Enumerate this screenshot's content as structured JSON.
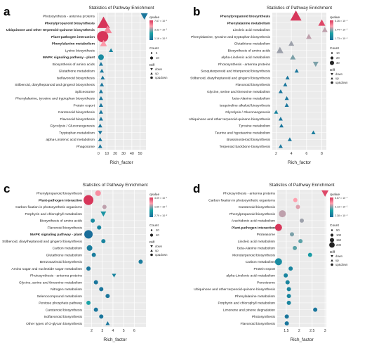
{
  "figure": {
    "legend_labels": {
      "qvalue": "qvalue",
      "count": "Count",
      "diff": "Diff"
    },
    "diff_labels": [
      "down",
      "up",
      "up&down"
    ],
    "colors": {
      "high": "#d7365a",
      "mid": "#ff9fae",
      "low": "#1aa3a6",
      "lowest": "#1a6e9a",
      "shape_mid": "#71c0ac"
    }
  },
  "chart_data": [
    {
      "panel_letter": "a",
      "type": "scatter",
      "title": "Statistics of Pathway Enrichment",
      "xlabel": "Rich_factor",
      "ylabel": "",
      "xlim": [
        -2,
        57
      ],
      "xticks": [
        0,
        10,
        20,
        30,
        40,
        50
      ],
      "legend": {
        "qvalue_ticks": [
          "7.67 × 10⁻¹",
          "3.33 × 10⁻¹",
          "1.16 × 10⁻¹"
        ],
        "count_sizes": [
          5,
          10
        ],
        "diff": [
          "down",
          "up",
          "up&down"
        ]
      },
      "categories": [
        "Photosynthesis - antenna proteins",
        "Phenylpropanoid biosynthesis",
        "Ubiquinone and other terpenoid-quinone biosynthesis",
        "Plant-pathogen interaction",
        "Phenylalanine metabolism",
        "Lysine biosynthesis",
        "MAPK signaling pathway - plant",
        "Biosynthesis of amino acids",
        "Glutathione metabolism",
        "Isoflavonoid biosynthesis",
        "Stilbenoid, diarylheptanoid and gingerol biosynthesis",
        "Spliceosome",
        "Phenylalanine, tyrosine and tryptophan biosynthesis",
        "Protein export",
        "Carotenoid biosynthesis",
        "Flavonoid biosynthesis",
        "Glycolysis / Gluconeogenesis",
        "Tryptophan metabolism",
        "alpha-Linolenic acid metabolism",
        "Phagosome"
      ],
      "bold": [
        "Phenylpropanoid biosynthesis",
        "Ubiquinone and other terpenoid-quinone biosynthesis",
        "Plant-pathogen interaction",
        "Phenylalanine metabolism",
        "MAPK signaling pathway - plant"
      ],
      "points": [
        {
          "x": 55,
          "c": 0.05,
          "r": 5,
          "m": "down"
        },
        {
          "x": 6,
          "c": 1.0,
          "r": 9,
          "m": "up"
        },
        {
          "x": 11,
          "c": 0.78,
          "r": 6,
          "m": "up"
        },
        {
          "x": 5,
          "c": 1.0,
          "r": 8,
          "m": "circle"
        },
        {
          "x": 6,
          "c": 0.72,
          "r": 5,
          "m": "up"
        },
        {
          "x": 15,
          "c": 0.15,
          "r": 3,
          "m": "up"
        },
        {
          "x": 3,
          "c": 0.2,
          "r": 4,
          "m": "circle"
        },
        {
          "x": 3,
          "c": 0.05,
          "r": 3,
          "m": "up"
        },
        {
          "x": 4,
          "c": 0.08,
          "r": 3,
          "m": "up"
        },
        {
          "x": 5,
          "c": 0.05,
          "r": 3,
          "m": "up"
        },
        {
          "x": 4,
          "c": 0.05,
          "r": 3,
          "m": "up"
        },
        {
          "x": 3,
          "c": 0.05,
          "r": 3,
          "m": "up"
        },
        {
          "x": 3,
          "c": 0.05,
          "r": 3,
          "m": "up"
        },
        {
          "x": 3,
          "c": 0.05,
          "r": 3,
          "m": "up"
        },
        {
          "x": 3,
          "c": 0.05,
          "r": 3,
          "m": "up"
        },
        {
          "x": 3,
          "c": 0.05,
          "r": 3,
          "m": "up"
        },
        {
          "x": 2,
          "c": 0.05,
          "r": 3,
          "m": "up"
        },
        {
          "x": 2,
          "c": 0.05,
          "r": 3,
          "m": "down"
        },
        {
          "x": 2,
          "c": 0.05,
          "r": 3,
          "m": "up"
        },
        {
          "x": 2,
          "c": 0.05,
          "r": 3,
          "m": "up"
        }
      ]
    },
    {
      "panel_letter": "b",
      "type": "scatter",
      "title": "Statistics of Pathway Enrichment",
      "xlabel": "Rich_factor",
      "ylabel": "",
      "xlim": [
        1.5,
        8.6
      ],
      "xticks": [
        2,
        4,
        6,
        8
      ],
      "legend": {
        "qvalue_ticks": [
          "5.26 × 10⁻¹",
          "3.44 × 10⁻¹",
          "1.73 × 10⁻¹"
        ],
        "count_sizes": [
          10,
          20,
          30
        ],
        "diff": [
          "down",
          "up",
          "up&down"
        ]
      },
      "categories": [
        "Phenylpropanoid biosynthesis",
        "Phenylalanine metabolism",
        "Linoleic acid metabolism",
        "Phenylalanine, tyrosine and tryptophan biosynthesis",
        "Glutathione metabolism",
        "Biosynthesis of amino acids",
        "alpha-Linolenic acid metabolism",
        "Photosynthesis - antenna proteins",
        "Sesquiterpenoid and triterpenoid biosynthesis",
        "Stilbenoid, diarylheptanoid and gingerol biosynthesis",
        "Flavonoid biosynthesis",
        "Glycine, serine and threonine metabolism",
        "beta-Alanine metabolism",
        "Isoquinoline alkaloid biosynthesis",
        "Glycolysis / Gluconeogenesis",
        "Ubiquinone and other terpenoid-quinone biosynthesis",
        "Tyrosine metabolism",
        "Taurine and hypotaurine metabolism",
        "Brassinosteroid biosynthesis",
        "Terpenoid backbone biosynthesis"
      ],
      "bold": [
        "Phenylpropanoid biosynthesis",
        "Phenylalanine metabolism"
      ],
      "points": [
        {
          "x": 4.6,
          "c": 1.0,
          "r": 8,
          "m": "up"
        },
        {
          "x": 8.0,
          "c": 0.95,
          "r": 5,
          "m": "up"
        },
        {
          "x": 8.4,
          "c": 0.6,
          "r": 4,
          "m": "up"
        },
        {
          "x": 6.3,
          "c": 0.6,
          "r": 4,
          "m": "up"
        },
        {
          "x": 4.0,
          "c": 0.55,
          "r": 4,
          "m": "up"
        },
        {
          "x": 2.5,
          "c": 0.55,
          "r": 5,
          "m": "up"
        },
        {
          "x": 4.2,
          "c": 0.5,
          "r": 4,
          "m": "up"
        },
        {
          "x": 7.2,
          "c": 0.5,
          "r": 4,
          "m": "down"
        },
        {
          "x": 4.7,
          "c": 0.05,
          "r": 3,
          "m": "up"
        },
        {
          "x": 3.5,
          "c": 0.05,
          "r": 3,
          "m": "up"
        },
        {
          "x": 3.2,
          "c": 0.05,
          "r": 3,
          "m": "up"
        },
        {
          "x": 2.6,
          "c": 0.05,
          "r": 3,
          "m": "up"
        },
        {
          "x": 3.4,
          "c": 0.05,
          "r": 3,
          "m": "up"
        },
        {
          "x": 3.4,
          "c": 0.05,
          "r": 3,
          "m": "up"
        },
        {
          "x": 2.0,
          "c": 0.15,
          "r": 3,
          "m": "up"
        },
        {
          "x": 2.6,
          "c": 0.05,
          "r": 3,
          "m": "up"
        },
        {
          "x": 2.7,
          "c": 0.05,
          "r": 3,
          "m": "up"
        },
        {
          "x": 6.9,
          "c": 0.1,
          "r": 3,
          "m": "up"
        },
        {
          "x": 3.8,
          "c": 0.05,
          "r": 3,
          "m": "up"
        },
        {
          "x": 2.6,
          "c": 0.05,
          "r": 3,
          "m": "up"
        }
      ]
    },
    {
      "panel_letter": "c",
      "type": "scatter",
      "title": "Statistics of Pathway Enrichment",
      "xlabel": "Rich_factor",
      "ylabel": "",
      "xlim": [
        1.3,
        7.1
      ],
      "xticks": [
        2,
        3,
        4,
        5,
        6
      ],
      "legend": {
        "qvalue_ticks": [
          "3.09 × 10⁻¹",
          "1.69 × 10⁻¹",
          "2.79 × 10⁻²"
        ],
        "count_sizes": [
          20,
          40
        ],
        "diff": [
          "down",
          "up",
          "up&down"
        ]
      },
      "categories": [
        "Phenylpropanoid biosynthesis",
        "Plant-pathogen interaction",
        "Carbon fixation in photosynthetic organisms",
        "Porphyrin and chlorophyll metabolism",
        "Biosynthesis of amino acids",
        "Flavonoid biosynthesis",
        "MAPK signaling pathway - plant",
        "Stilbenoid, diarylheptanoid and gingerol biosynthesis",
        "Carbon metabolism",
        "Glutathione metabolism",
        "Benzoxazinoid biosynthesis",
        "Amino sugar and nucleotide sugar metabolism",
        "Photosynthesis - antenna proteins",
        "Glycine, serine and threonine metabolism",
        "Nitrogen metabolism",
        "Selenocompound metabolism",
        "Pentose phosphate pathway",
        "Carotenoid biosynthesis",
        "Isoflavonoid biosynthesis",
        "Other types of O-glycan biosynthesis"
      ],
      "bold": [
        "Plant-pathogen interaction",
        "MAPK signaling pathway - plant"
      ],
      "points": [
        {
          "x": 2.6,
          "c": 0.75,
          "r": 4,
          "m": "circle"
        },
        {
          "x": 1.7,
          "c": 1.0,
          "r": 7,
          "m": "circle"
        },
        {
          "x": 3.2,
          "c": 0.6,
          "r": 3,
          "m": "circle"
        },
        {
          "x": 3.1,
          "c": 0.25,
          "r": 4,
          "m": "down"
        },
        {
          "x": 2.1,
          "c": 0.2,
          "r": 3,
          "m": "circle"
        },
        {
          "x": 2.7,
          "c": 0.15,
          "r": 3,
          "m": "circle"
        },
        {
          "x": 1.7,
          "c": 0.0,
          "r": 6,
          "m": "circle"
        },
        {
          "x": 3.1,
          "c": 0.15,
          "r": 3,
          "m": "circle"
        },
        {
          "x": 1.8,
          "c": 0.1,
          "r": 4,
          "m": "circle"
        },
        {
          "x": 2.2,
          "c": 0.1,
          "r": 3,
          "m": "circle"
        },
        {
          "x": 6.6,
          "c": 0.1,
          "r": 3,
          "m": "circle"
        },
        {
          "x": 1.7,
          "c": 0.05,
          "r": 3,
          "m": "circle"
        },
        {
          "x": 4.1,
          "c": 0.15,
          "r": 3,
          "m": "down"
        },
        {
          "x": 2.4,
          "c": 0.05,
          "r": 3,
          "m": "circle"
        },
        {
          "x": 2.9,
          "c": 0.05,
          "r": 3,
          "m": "circle"
        },
        {
          "x": 3.5,
          "c": 0.05,
          "r": 3,
          "m": "circle"
        },
        {
          "x": 1.7,
          "c": 0.35,
          "r": 3,
          "m": "circle"
        },
        {
          "x": 2.4,
          "c": 0.05,
          "r": 3,
          "m": "circle"
        },
        {
          "x": 2.9,
          "c": 0.05,
          "r": 3,
          "m": "circle"
        },
        {
          "x": 3.5,
          "c": 0.05,
          "r": 3,
          "m": "up"
        }
      ]
    },
    {
      "panel_letter": "d",
      "type": "scatter",
      "title": "Statistics of Pathway Enrichment",
      "xlabel": "Rich_factor",
      "ylabel": "",
      "xlim": [
        1.15,
        3.05
      ],
      "xticks": [
        1.5,
        2,
        2.5,
        3
      ],
      "legend": {
        "qvalue_ticks": [
          "5.67 × 10⁻¹",
          "3.13 × 10⁻¹",
          "2.38 × 10⁻²"
        ],
        "count_sizes": [
          50,
          100,
          150,
          200
        ],
        "diff": [
          "down",
          "up",
          "up&down"
        ]
      },
      "categories": [
        "Photosynthesis - antenna proteins",
        "Carbon fixation in photosynthetic organisms",
        "Carotenoid biosynthesis",
        "Phenylpropanoid biosynthesis",
        "Arachidonic acid metabolism",
        "Plant-pathogen interaction",
        "Proteasome",
        "Linoleic acid metabolism",
        "beta-Alanine metabolism",
        "Monoterpenoid biosynthesis",
        "Carbon metabolism",
        "Protein export",
        "alpha-Linolenic acid metabolism",
        "Peroxisome",
        "Ubiquinone and other terpenoid-quinone biosynthesis",
        "Phenylalanine metabolism",
        "Porphyrin and chlorophyll metabolism",
        "Limonene and pinene degradation",
        "Photosynthesis",
        "Flavonoid biosynthesis"
      ],
      "bold": [
        "Plant-pathogen interaction"
      ],
      "points": [
        {
          "x": 3.0,
          "c": 0.95,
          "r": 5,
          "m": "down"
        },
        {
          "x": 1.85,
          "c": 0.7,
          "r": 3,
          "m": "circle"
        },
        {
          "x": 1.95,
          "c": 0.65,
          "r": 3,
          "m": "circle"
        },
        {
          "x": 1.35,
          "c": 0.6,
          "r": 5,
          "m": "circle"
        },
        {
          "x": 2.1,
          "c": 0.55,
          "r": 3,
          "m": "circle"
        },
        {
          "x": 1.2,
          "c": 1.0,
          "r": 5,
          "m": "circle"
        },
        {
          "x": 1.72,
          "c": 0.5,
          "r": 3,
          "m": "circle"
        },
        {
          "x": 2.05,
          "c": 0.45,
          "r": 3,
          "m": "circle"
        },
        {
          "x": 1.83,
          "c": 0.45,
          "r": 3,
          "m": "circle"
        },
        {
          "x": 2.42,
          "c": 0.3,
          "r": 3,
          "m": "circle"
        },
        {
          "x": 1.2,
          "c": 0.2,
          "r": 5,
          "m": "circle"
        },
        {
          "x": 1.67,
          "c": 0.15,
          "r": 3,
          "m": "circle"
        },
        {
          "x": 1.48,
          "c": 0.15,
          "r": 3,
          "m": "circle"
        },
        {
          "x": 1.55,
          "c": 0.15,
          "r": 3,
          "m": "circle"
        },
        {
          "x": 1.6,
          "c": 0.15,
          "r": 3,
          "m": "circle"
        },
        {
          "x": 1.6,
          "c": 0.15,
          "r": 3,
          "m": "circle"
        },
        {
          "x": 1.6,
          "c": 0.15,
          "r": 3,
          "m": "circle"
        },
        {
          "x": 2.62,
          "c": 0.05,
          "r": 3,
          "m": "circle"
        },
        {
          "x": 1.52,
          "c": 0.05,
          "r": 3,
          "m": "circle"
        },
        {
          "x": 1.52,
          "c": 0.05,
          "r": 3,
          "m": "circle"
        }
      ]
    }
  ]
}
